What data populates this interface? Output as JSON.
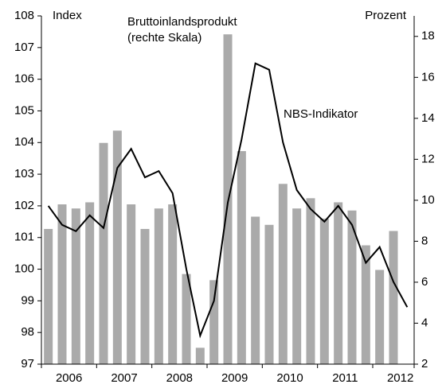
{
  "chart_data": {
    "type": "bar_line",
    "annotations": {
      "left_axis": "Index",
      "right_axis": "Prozent",
      "bar_note": "(rechte Skala)"
    },
    "categories": [
      "2006",
      null,
      null,
      null,
      "2007",
      null,
      null,
      null,
      "2008",
      null,
      null,
      null,
      "2009",
      null,
      null,
      null,
      "2010",
      null,
      null,
      null,
      "2011",
      null,
      null,
      null,
      "2012",
      null,
      null
    ],
    "series": [
      {
        "name": "Bruttoinlandsprodukt",
        "type": "bar",
        "axis": "y2",
        "color": "#aaaaaa",
        "values": [
          8.6,
          9.8,
          9.6,
          9.9,
          12.8,
          13.4,
          9.8,
          8.6,
          9.6,
          9.8,
          6.4,
          2.8,
          6.1,
          18.1,
          12.4,
          9.2,
          8.8,
          10.8,
          9.6,
          10.1,
          9.1,
          9.9,
          9.5,
          7.8,
          6.6,
          8.5,
          null
        ]
      },
      {
        "name": "NBS-Indikator",
        "type": "line",
        "axis": "y",
        "color": "#000000",
        "values": [
          102.0,
          101.4,
          101.2,
          101.7,
          101.3,
          103.2,
          103.8,
          102.9,
          103.1,
          102.4,
          100.0,
          97.9,
          99.0,
          102.1,
          104.1,
          106.5,
          106.3,
          104.0,
          102.5,
          101.9,
          101.5,
          102.0,
          101.4,
          100.2,
          100.7,
          99.6,
          98.8
        ]
      }
    ],
    "ylim": [
      97,
      108
    ],
    "yticks": [
      97,
      98,
      99,
      100,
      101,
      102,
      103,
      104,
      105,
      106,
      107,
      108
    ],
    "y2lim": [
      2,
      19
    ],
    "y2ticks": [
      2,
      4,
      6,
      8,
      10,
      12,
      14,
      16,
      18
    ]
  }
}
